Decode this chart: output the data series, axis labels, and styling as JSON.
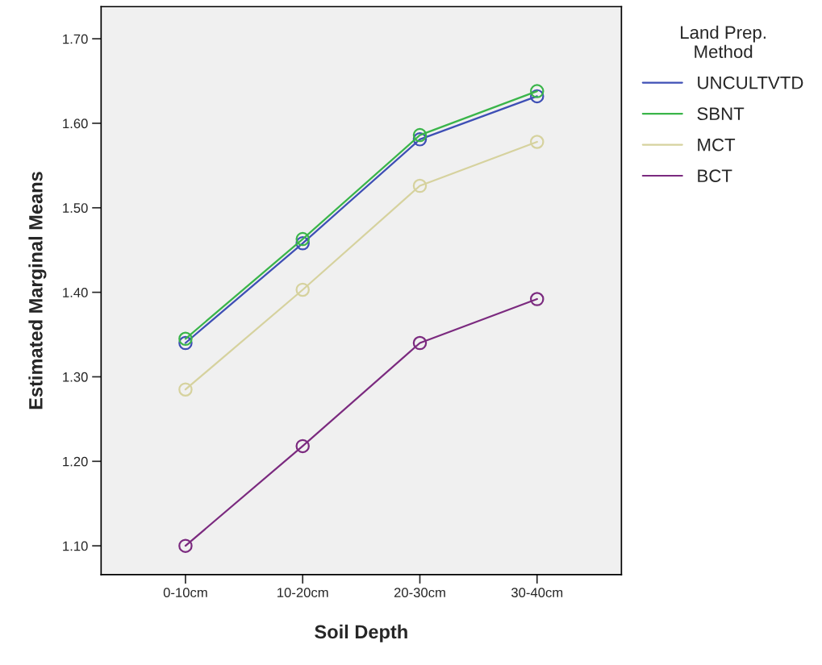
{
  "chart_data": {
    "type": "line",
    "xlabel": "Soil Depth",
    "ylabel": "Estimated Marginal Means",
    "legend_title": "Land Prep.\nMethod",
    "categories": [
      "0-10cm",
      "10-20cm",
      "20-30cm",
      "30-40cm"
    ],
    "series": [
      {
        "name": "UNCULTVTD",
        "color": "#3e4fb5",
        "values": [
          1.34,
          1.458,
          1.581,
          1.632
        ]
      },
      {
        "name": "SBNT",
        "color": "#3ab54a",
        "values": [
          1.345,
          1.463,
          1.586,
          1.638
        ]
      },
      {
        "name": "MCT",
        "color": "#d6d29e",
        "values": [
          1.285,
          1.403,
          1.526,
          1.578
        ]
      },
      {
        "name": "BCT",
        "color": "#7b2a7f",
        "values": [
          1.1,
          1.218,
          1.34,
          1.392
        ]
      }
    ],
    "ylim": [
      1.066,
      1.738
    ],
    "yticks": [
      {
        "value": 1.1,
        "label": "1.10"
      },
      {
        "value": 1.2,
        "label": "1.20"
      },
      {
        "value": 1.3,
        "label": "1.30"
      },
      {
        "value": 1.4,
        "label": "1.40"
      },
      {
        "value": 1.5,
        "label": "1.50"
      },
      {
        "value": 1.6,
        "label": "1.60"
      },
      {
        "value": 1.7,
        "label": "1.70"
      }
    ],
    "marker": "circle",
    "line_style": "solid",
    "grid": false,
    "legend": "right"
  }
}
